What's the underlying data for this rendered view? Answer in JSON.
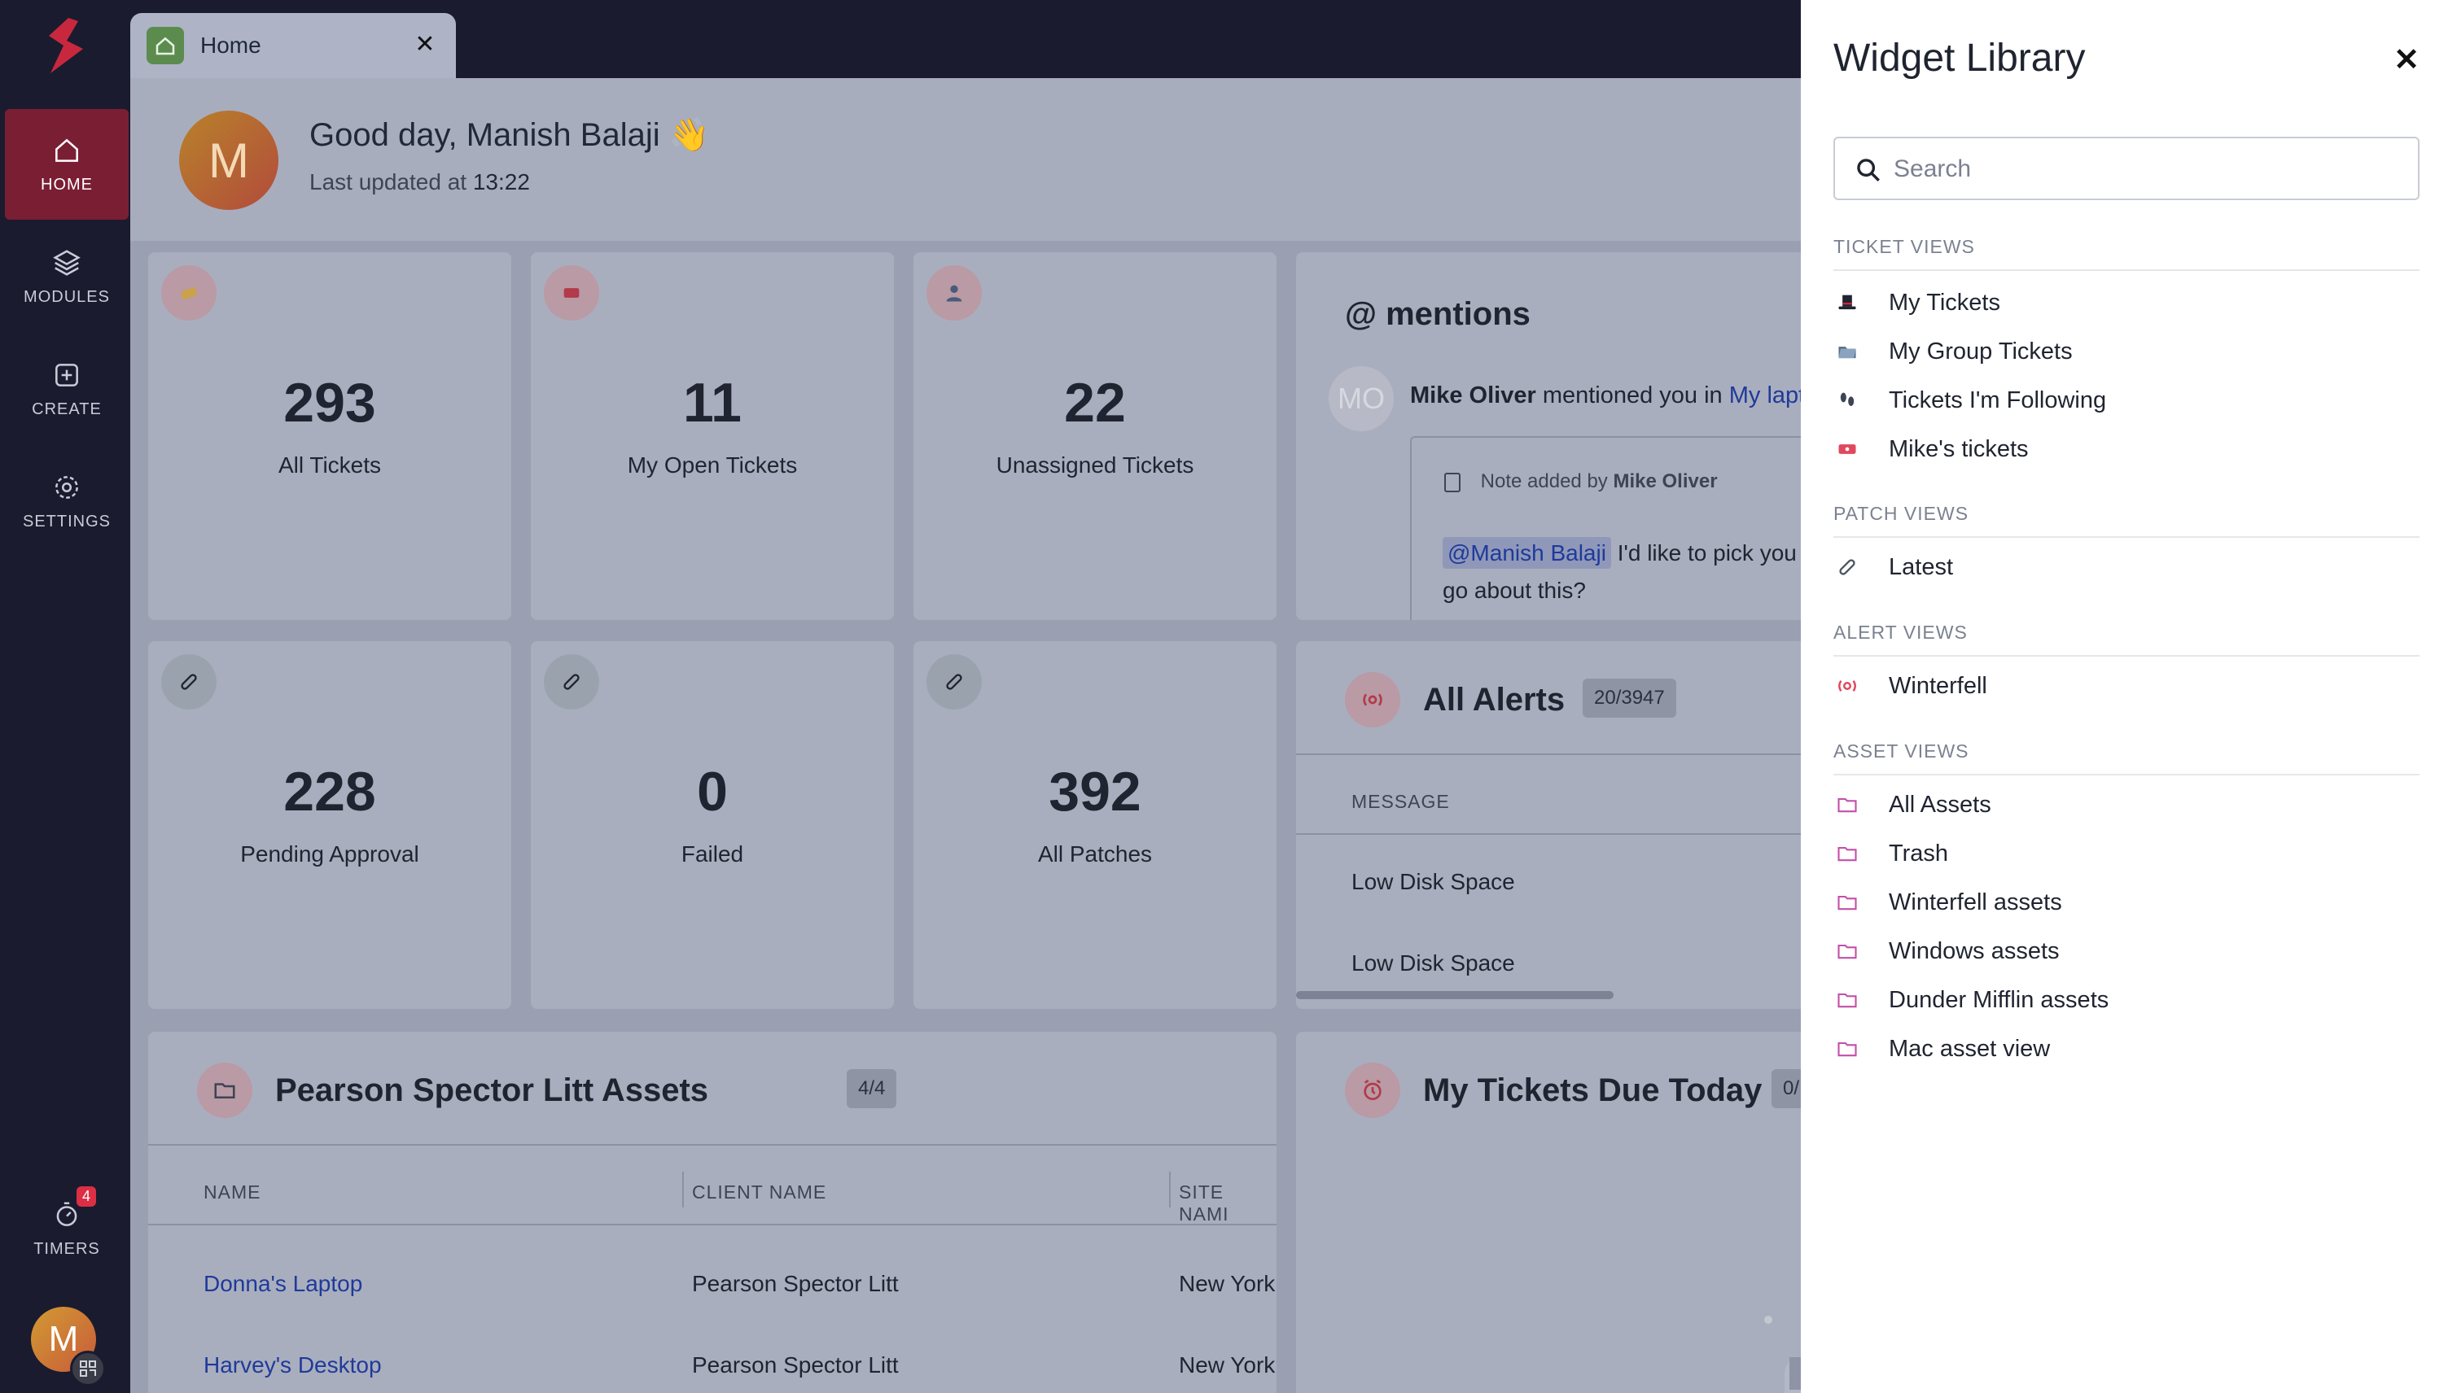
{
  "nav": {
    "items": [
      {
        "label": "HOME",
        "icon": "home-icon"
      },
      {
        "label": "MODULES",
        "icon": "layers-icon"
      },
      {
        "label": "CREATE",
        "icon": "plus-square-icon"
      },
      {
        "label": "SETTINGS",
        "icon": "gear-icon"
      }
    ],
    "timers": {
      "label": "TIMERS",
      "badge": "4"
    },
    "avatar_initial": "M"
  },
  "tab": {
    "label": "Home",
    "close": "✕"
  },
  "greeting": {
    "avatar_initial": "M",
    "title": "Good day, Manish Balaji 👋",
    "updated_prefix": "Last updated at",
    "updated_time": "13:22"
  },
  "stats": [
    {
      "value": "293",
      "label": "All Tickets"
    },
    {
      "value": "11",
      "label": "My Open Tickets"
    },
    {
      "value": "22",
      "label": "Unassigned Tickets"
    },
    {
      "value": "228",
      "label": "Pending Approval"
    },
    {
      "value": "0",
      "label": "Failed"
    },
    {
      "value": "392",
      "label": "All Patches"
    }
  ],
  "mentions": {
    "title": "@ mentions",
    "avatar_initials": "MO",
    "author": "Mike Oliver",
    "mentioned_text": "mentioned you in",
    "link_text": "My lapt",
    "note_prefix": "Note added by",
    "note_author": "Mike Oliver",
    "mention_tag": "@Manish Balaji",
    "body_line1": "I'd like to pick you",
    "body_line2": "go about this?"
  },
  "alerts": {
    "title": "All Alerts",
    "count": "20/3947",
    "column": "MESSAGE",
    "rows": [
      "Low Disk Space",
      "Low Disk Space"
    ]
  },
  "assets_widget": {
    "title": "Pearson Spector Litt Assets",
    "count": "4/4",
    "columns": [
      "NAME",
      "CLIENT NAME",
      "SITE NAMI"
    ],
    "rows": [
      {
        "name": "Donna's Laptop",
        "client": "Pearson Spector Litt",
        "site": "New York"
      },
      {
        "name": "Harvey's Desktop",
        "client": "Pearson Spector Litt",
        "site": "New York"
      }
    ]
  },
  "due_today": {
    "title": "My Tickets Due Today",
    "count": "0/"
  },
  "panel": {
    "title": "Widget Library",
    "close": "✕",
    "search_placeholder": "Search",
    "groups": [
      {
        "label": "TICKET VIEWS",
        "items": [
          "My Tickets",
          "My Group Tickets",
          "Tickets I'm Following",
          "Mike's tickets"
        ]
      },
      {
        "label": "PATCH VIEWS",
        "items": [
          "Latest"
        ]
      },
      {
        "label": "ALERT VIEWS",
        "items": [
          "Winterfell"
        ]
      },
      {
        "label": "ASSET VIEWS",
        "items": [
          "All Assets",
          "Trash",
          "Winterfell assets",
          "Windows assets",
          "Dunder Mifflin assets",
          "Mac asset view"
        ]
      }
    ]
  },
  "colors": {
    "nav_bg": "#1a1b2e",
    "active": "#7a1e34",
    "overlay": "#9a9fb1",
    "link": "#1f3a9a"
  }
}
